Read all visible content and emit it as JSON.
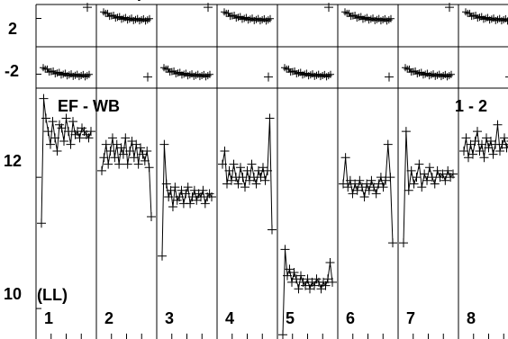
{
  "chart_data": {
    "type": "scatter",
    "title": "(LL)",
    "header_fragment": "(",
    "annotation_left": "EF - WB",
    "annotation_right": "1 - 2",
    "panel_labels": [
      "1",
      "2",
      "3",
      "4",
      "5",
      "6",
      "7",
      "8"
    ],
    "top_strip": {
      "ylim": [
        -3,
        3
      ],
      "tick_labels": [
        "2",
        "-2"
      ],
      "tick_values": [
        2,
        -2
      ],
      "curve_row": [
        "low",
        "high",
        "low",
        "high",
        "low",
        "high",
        "low",
        "high"
      ]
    },
    "bottom": {
      "ylim": [
        9.7,
        13.4
      ],
      "tick_labels": [
        "12",
        "10"
      ],
      "tick_values": [
        12,
        10
      ],
      "series": [
        {
          "values": [
            11.3,
            13.2,
            12.9,
            12.7,
            12.5,
            12.85,
            12.6,
            12.4,
            12.8,
            12.75,
            12.55,
            12.9,
            12.7,
            12.5,
            12.85,
            12.65,
            12.7,
            12.6,
            12.75,
            12.7,
            12.65,
            12.6,
            12.7
          ]
        },
        {
          "values": [
            12.1,
            12.3,
            12.5,
            12.2,
            12.4,
            12.6,
            12.3,
            12.5,
            12.2,
            12.45,
            12.35,
            12.6,
            12.2,
            12.4,
            12.55,
            12.3,
            12.5,
            12.2,
            12.45,
            12.35,
            12.25,
            12.4,
            12.15,
            11.4
          ]
        },
        {
          "values": [
            10.8,
            12.5,
            11.9,
            11.7,
            11.8,
            11.55,
            11.85,
            11.65,
            11.7,
            11.8,
            11.6,
            11.75,
            11.85,
            11.6,
            11.7,
            11.8,
            11.65,
            11.75,
            11.7,
            11.8,
            11.6,
            11.7,
            11.75,
            11.7
          ]
        },
        {
          "values": [
            12.2,
            12.4,
            11.9,
            12.1,
            11.95,
            12.2,
            12.0,
            11.9,
            12.15,
            12.0,
            11.85,
            12.1,
            11.95,
            12.2,
            12.0,
            11.9,
            12.1,
            12.0,
            12.15,
            11.95,
            12.1,
            12.9,
            11.2
          ]
        },
        {
          "values": [
            9.6,
            10.9,
            10.5,
            10.6,
            10.4,
            10.55,
            10.45,
            10.3,
            10.5,
            10.4,
            10.35,
            10.45,
            10.3,
            10.4,
            10.35,
            10.45,
            10.4,
            10.3,
            10.4,
            10.35,
            10.45,
            10.7,
            10.4
          ]
        },
        {
          "values": [
            11.9,
            12.3,
            11.85,
            11.95,
            11.75,
            11.9,
            11.8,
            11.95,
            11.85,
            11.7,
            11.9,
            11.8,
            11.95,
            11.85,
            11.75,
            11.9,
            12.0,
            11.85,
            11.95,
            12.5,
            12.0,
            11.0
          ]
        },
        {
          "values": [
            11.0,
            12.7,
            11.8,
            12.1,
            11.9,
            12.0,
            12.2,
            11.85,
            12.05,
            11.95,
            12.15,
            12.0,
            11.9,
            12.1,
            12.0,
            12.05,
            11.95,
            12.1,
            12.0,
            12.05
          ]
        },
        {
          "values": [
            12.4,
            12.6,
            12.3,
            12.5,
            12.35,
            12.55,
            12.7,
            12.4,
            12.5,
            12.3,
            12.6,
            12.45,
            12.55,
            12.35,
            12.5,
            12.8,
            12.4,
            12.5,
            12.6,
            12.45,
            12.5,
            12.55,
            12.6
          ]
        }
      ]
    }
  }
}
